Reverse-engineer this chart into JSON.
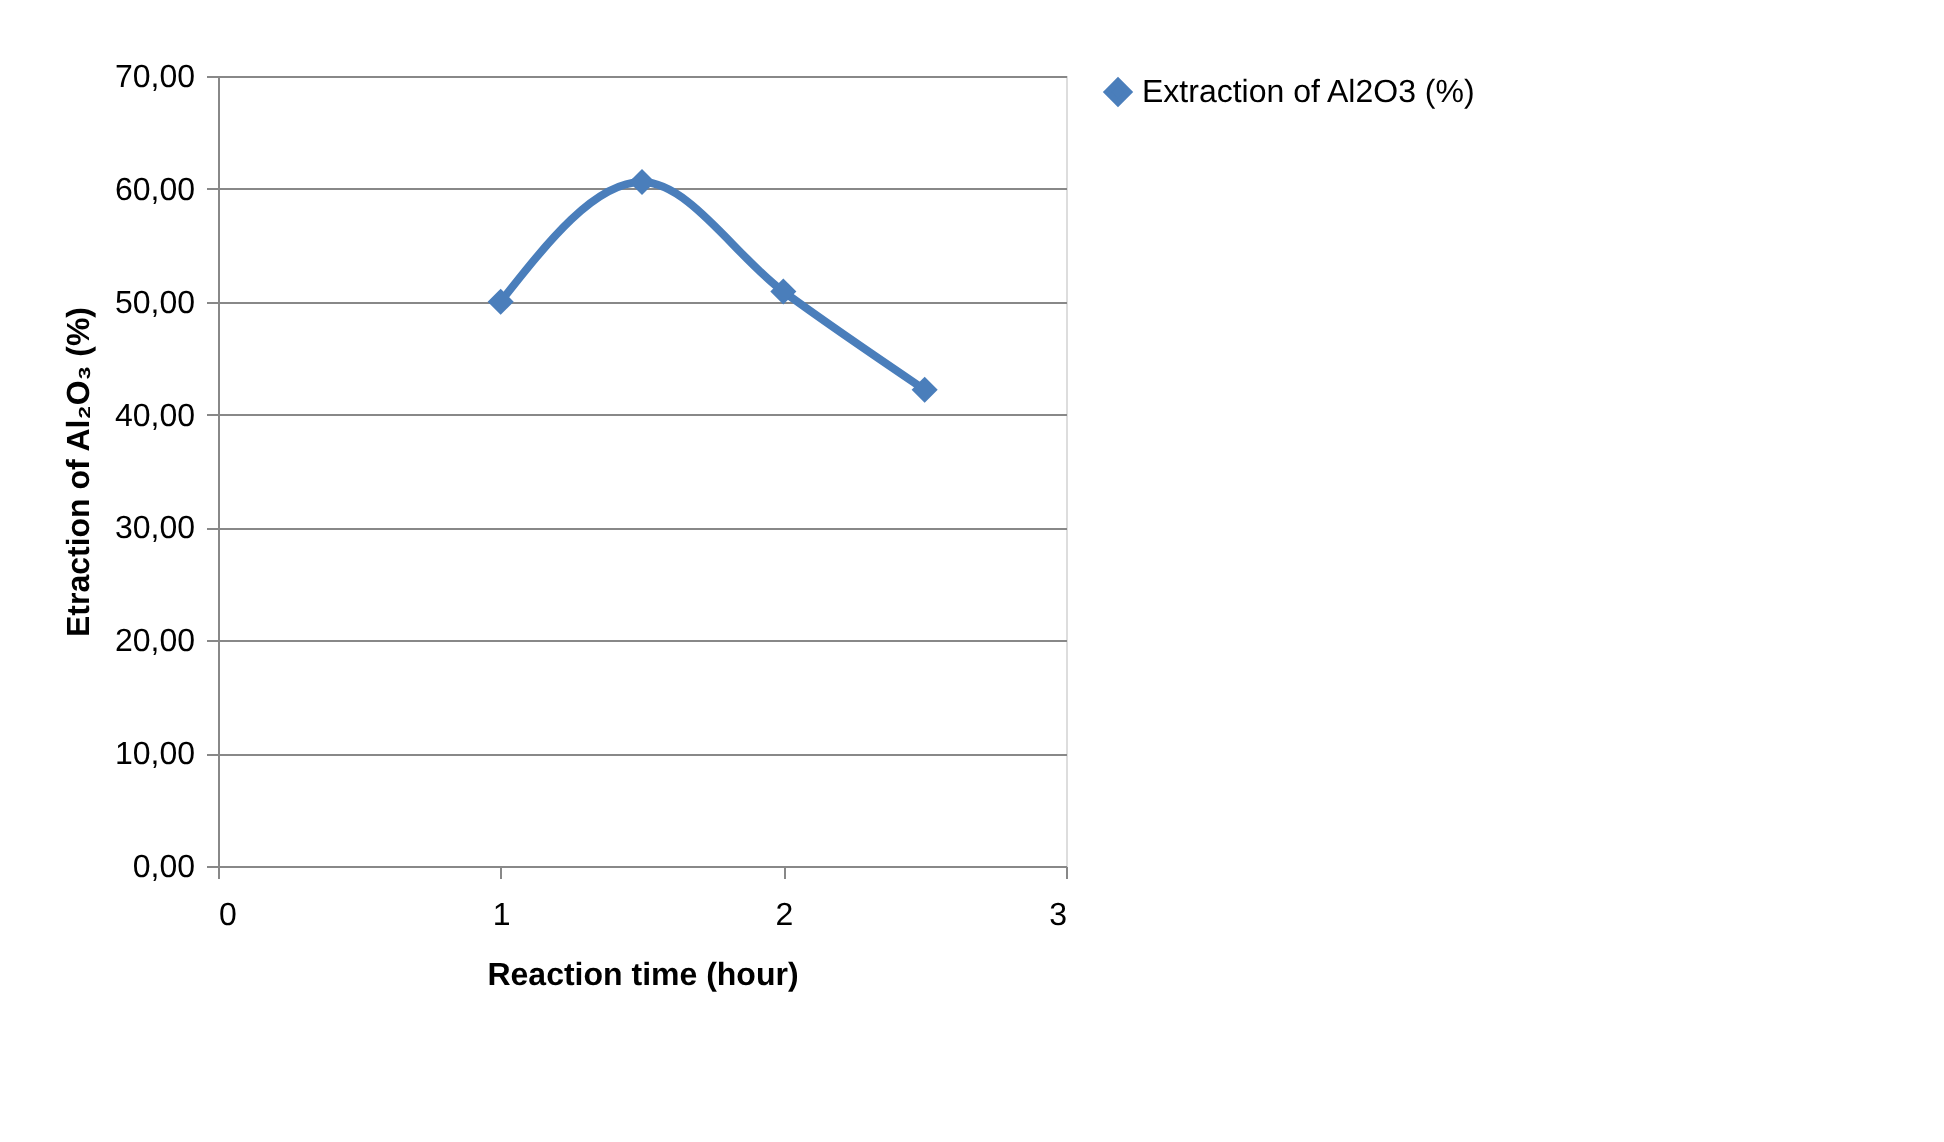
{
  "chart_data": {
    "type": "line",
    "xlabel": "Reaction time (hour)",
    "ylabel": "Etraction of Al₂O₃ (%)",
    "x": [
      1,
      1.5,
      2,
      2.5
    ],
    "series": [
      {
        "name": "Extraction of Al2O3 (%)",
        "color": "#4a7ebb",
        "values": [
          50.0,
          60.6,
          50.9,
          42.2
        ]
      }
    ],
    "xlim": [
      0,
      3
    ],
    "xticks": [
      0,
      1,
      2,
      3
    ],
    "ylim": [
      0,
      70
    ],
    "yticks": [
      {
        "value": 0,
        "label": "0,00"
      },
      {
        "value": 10,
        "label": "10,00"
      },
      {
        "value": 20,
        "label": "20,00"
      },
      {
        "value": 30,
        "label": "30,00"
      },
      {
        "value": 40,
        "label": "40,00"
      },
      {
        "value": 50,
        "label": "50,00"
      },
      {
        "value": 60,
        "label": "60,00"
      },
      {
        "value": 70,
        "label": "70,00"
      }
    ],
    "grid": "y",
    "legend": "right",
    "marker": "diamond",
    "line_style": "solid"
  }
}
